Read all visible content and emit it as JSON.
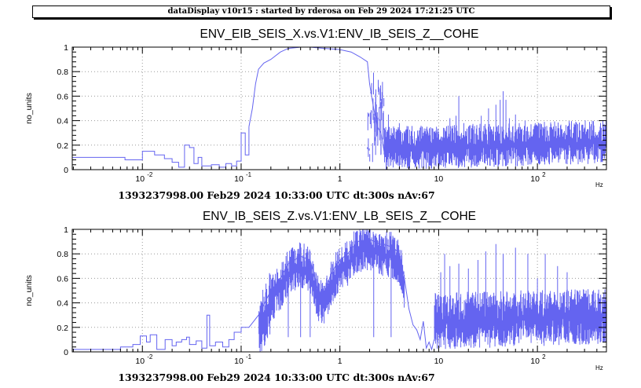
{
  "header": {
    "banner": "dataDisplay v10r15 : started by rderosa on Feb 29 2024 17:21:25 UTC"
  },
  "colors": {
    "series": "#6464f0",
    "grid": "#9a9a9a",
    "axis": "#000000"
  },
  "chart_data": [
    {
      "type": "line",
      "title": "ENV_EIB_SEIS_X.vs.V1:ENV_IB_SEIS_Z__COHE",
      "ylabel": "no_units",
      "xunit": "Hz",
      "caption": "1393237998.00 Feb29 2024 10:33:00 UTC dt:300s nAv:67",
      "xscale": "log",
      "xlim": [
        0.00195,
        500
      ],
      "ylim": [
        0,
        1
      ],
      "grid": true,
      "x_ticks": [
        {
          "v": 0.01,
          "label": "10"
        },
        {
          "v": 0.1,
          "label": "10"
        },
        {
          "v": 1,
          "label": "1"
        },
        {
          "v": 10,
          "label": "10"
        },
        {
          "v": 100,
          "label": "10"
        }
      ],
      "x_tick_exps": [
        "-2",
        "-1",
        "",
        "",
        "2"
      ],
      "y_ticks": [
        {
          "v": 0,
          "label": "0"
        },
        {
          "v": 0.2,
          "label": "0.2"
        },
        {
          "v": 0.4,
          "label": "0.4"
        },
        {
          "v": 0.6,
          "label": "0.6"
        },
        {
          "v": 0.8,
          "label": "0.8"
        },
        {
          "v": 1,
          "label": "1"
        }
      ],
      "series": [
        {
          "steps": [
            [
              0.00195,
              0.1
            ],
            [
              0.00667,
              0.1
            ],
            [
              0.00667,
              0.08
            ],
            [
              0.01,
              0.08
            ],
            [
              0.01,
              0.15
            ],
            [
              0.0133,
              0.15
            ],
            [
              0.0133,
              0.12
            ],
            [
              0.0167,
              0.12
            ],
            [
              0.0167,
              0.09
            ],
            [
              0.02,
              0.09
            ],
            [
              0.02,
              0.06
            ],
            [
              0.0233,
              0.06
            ],
            [
              0.0233,
              0.02
            ],
            [
              0.0267,
              0.02
            ],
            [
              0.0267,
              0.2
            ],
            [
              0.03,
              0.2
            ],
            [
              0.03,
              0.18
            ],
            [
              0.0333,
              0.18
            ],
            [
              0.0333,
              0.05
            ],
            [
              0.0367,
              0.05
            ],
            [
              0.0367,
              0.1
            ],
            [
              0.04,
              0.1
            ],
            [
              0.04,
              0.03
            ],
            [
              0.05,
              0.03
            ],
            [
              0.05,
              0.04
            ],
            [
              0.06,
              0.04
            ],
            [
              0.06,
              0.02
            ],
            [
              0.07,
              0.02
            ],
            [
              0.07,
              0.05
            ],
            [
              0.08,
              0.05
            ],
            [
              0.08,
              0.03
            ],
            [
              0.09,
              0.03
            ],
            [
              0.09,
              0.07
            ],
            [
              0.1,
              0.07
            ],
            [
              0.1,
              0.3
            ],
            [
              0.11,
              0.3
            ],
            [
              0.11,
              0.12
            ],
            [
              0.12,
              0.12
            ],
            [
              0.12,
              0.35
            ]
          ],
          "line": [
            [
              0.12,
              0.35
            ],
            [
              0.13,
              0.5
            ],
            [
              0.14,
              0.7
            ],
            [
              0.15,
              0.82
            ],
            [
              0.17,
              0.87
            ],
            [
              0.2,
              0.9
            ],
            [
              0.25,
              0.96
            ],
            [
              0.3,
              0.99
            ],
            [
              0.4,
              1.0
            ],
            [
              0.5,
              1.0
            ],
            [
              0.7,
              0.99
            ],
            [
              1.0,
              0.98
            ],
            [
              1.3,
              0.96
            ],
            [
              1.6,
              0.92
            ],
            [
              1.9,
              0.88
            ],
            [
              2.0,
              0.7
            ],
            [
              2.2,
              0.5
            ],
            [
              2.4,
              0.35
            ],
            [
              2.6,
              0.3
            ],
            [
              2.8,
              0.15
            ],
            [
              3.0,
              0.08
            ]
          ],
          "noise": {
            "from": 2.0,
            "to": 500,
            "base": 0.16,
            "trend": 0.06,
            "spread": 0.17,
            "seed": 7
          },
          "spikes": [
            [
              2.3,
              0.62
            ],
            [
              2.6,
              0.55
            ],
            [
              3.1,
              0.45
            ],
            [
              4.0,
              0.38
            ],
            [
              6.5,
              0.34
            ],
            [
              9.5,
              0.35
            ],
            [
              13,
              0.42
            ],
            [
              15,
              0.44
            ],
            [
              16,
              0.6
            ],
            [
              18,
              0.38
            ],
            [
              22,
              0.36
            ],
            [
              27,
              0.44
            ],
            [
              32,
              0.5
            ],
            [
              38,
              0.53
            ],
            [
              42,
              0.57
            ],
            [
              45,
              0.64
            ],
            [
              48,
              0.57
            ],
            [
              52,
              0.42
            ],
            [
              60,
              0.45
            ],
            [
              75,
              0.4
            ],
            [
              95,
              0.38
            ],
            [
              120,
              0.35
            ],
            [
              150,
              0.33
            ]
          ]
        }
      ]
    },
    {
      "type": "line",
      "title": "ENV_IB_SEIS_Z.vs.V1:ENV_LB_SEIS_Z__COHE",
      "ylabel": "no_units",
      "xunit": "Hz",
      "caption": "1393237998.00 Feb29 2024 10:33:00 UTC dt:300s nAv:67",
      "xscale": "log",
      "xlim": [
        0.00195,
        500
      ],
      "ylim": [
        0,
        1
      ],
      "grid": true,
      "x_ticks": [
        {
          "v": 0.01,
          "label": "10"
        },
        {
          "v": 0.1,
          "label": "10"
        },
        {
          "v": 1,
          "label": "1"
        },
        {
          "v": 10,
          "label": "10"
        },
        {
          "v": 100,
          "label": "10"
        }
      ],
      "x_tick_exps": [
        "-2",
        "-1",
        "",
        "",
        "2"
      ],
      "y_ticks": [
        {
          "v": 0,
          "label": "0"
        },
        {
          "v": 0.2,
          "label": "0.2"
        },
        {
          "v": 0.4,
          "label": "0.4"
        },
        {
          "v": 0.6,
          "label": "0.6"
        },
        {
          "v": 0.8,
          "label": "0.8"
        },
        {
          "v": 1,
          "label": "1"
        }
      ],
      "series": [
        {
          "steps": [
            [
              0.00195,
              0.02
            ],
            [
              0.006,
              0.02
            ],
            [
              0.006,
              0.04
            ],
            [
              0.008,
              0.04
            ],
            [
              0.008,
              0.06
            ],
            [
              0.0095,
              0.06
            ],
            [
              0.0095,
              0.13
            ],
            [
              0.011,
              0.13
            ],
            [
              0.011,
              0.08
            ],
            [
              0.012,
              0.08
            ],
            [
              0.012,
              0.14
            ],
            [
              0.014,
              0.14
            ],
            [
              0.014,
              0.02
            ],
            [
              0.017,
              0.02
            ],
            [
              0.017,
              0.1
            ],
            [
              0.02,
              0.1
            ],
            [
              0.02,
              0.05
            ],
            [
              0.022,
              0.05
            ],
            [
              0.022,
              0.08
            ],
            [
              0.025,
              0.08
            ],
            [
              0.025,
              0.1
            ],
            [
              0.028,
              0.1
            ],
            [
              0.028,
              0.12
            ],
            [
              0.03,
              0.12
            ],
            [
              0.03,
              0.06
            ],
            [
              0.035,
              0.06
            ],
            [
              0.035,
              0.09
            ],
            [
              0.04,
              0.09
            ],
            [
              0.04,
              0.03
            ],
            [
              0.045,
              0.03
            ],
            [
              0.045,
              0.3
            ],
            [
              0.048,
              0.3
            ],
            [
              0.048,
              0.05
            ],
            [
              0.055,
              0.05
            ],
            [
              0.055,
              0.08
            ],
            [
              0.065,
              0.08
            ],
            [
              0.065,
              0.04
            ],
            [
              0.075,
              0.04
            ],
            [
              0.075,
              0.1
            ],
            [
              0.085,
              0.1
            ],
            [
              0.085,
              0.16
            ],
            [
              0.1,
              0.16
            ],
            [
              0.1,
              0.2
            ],
            [
              0.12,
              0.2
            ]
          ],
          "line": [
            [
              0.12,
              0.2
            ],
            [
              0.15,
              0.3
            ],
            [
              0.2,
              0.5
            ],
            [
              0.25,
              0.6
            ],
            [
              0.3,
              0.72
            ],
            [
              0.4,
              0.78
            ],
            [
              0.5,
              0.75
            ],
            [
              0.6,
              0.5
            ],
            [
              0.7,
              0.48
            ],
            [
              0.8,
              0.62
            ],
            [
              0.9,
              0.7
            ],
            [
              1.0,
              0.75
            ],
            [
              1.2,
              0.8
            ],
            [
              1.5,
              0.9
            ],
            [
              2.0,
              0.92
            ],
            [
              2.5,
              0.88
            ],
            [
              3.0,
              0.87
            ],
            [
              3.5,
              0.85
            ],
            [
              4.0,
              0.8
            ],
            [
              4.5,
              0.6
            ],
            [
              5.0,
              0.35
            ],
            [
              5.5,
              0.22
            ],
            [
              6.0,
              0.18
            ],
            [
              6.5,
              0.1
            ],
            [
              7.0,
              0.25
            ],
            [
              7.5,
              0.03
            ],
            [
              8.0,
              0.08
            ],
            [
              8.5,
              0.02
            ],
            [
              9.0,
              0.1
            ]
          ],
          "noise": {
            "from": 0.15,
            "to": 500,
            "base": 0.2,
            "trend": 0.08,
            "spread": 0.22,
            "seed": 13,
            "jitter_from": 0.15,
            "jitter_to": 4.5
          },
          "spikes": [
            [
              0.3,
              0.62
            ],
            [
              0.4,
              0.85
            ],
            [
              0.5,
              0.82
            ],
            [
              2.2,
              0.96
            ],
            [
              3.3,
              0.98
            ],
            [
              10.5,
              0.65
            ],
            [
              11.5,
              0.8
            ],
            [
              13,
              0.7
            ],
            [
              16,
              0.72
            ],
            [
              20,
              0.68
            ],
            [
              25,
              0.75
            ],
            [
              30,
              0.82
            ],
            [
              38,
              0.88
            ],
            [
              45,
              0.8
            ],
            [
              60,
              0.85
            ],
            [
              80,
              0.8
            ],
            [
              100,
              0.6
            ],
            [
              120,
              0.8
            ],
            [
              160,
              0.7
            ],
            [
              200,
              0.65
            ]
          ]
        }
      ]
    }
  ]
}
